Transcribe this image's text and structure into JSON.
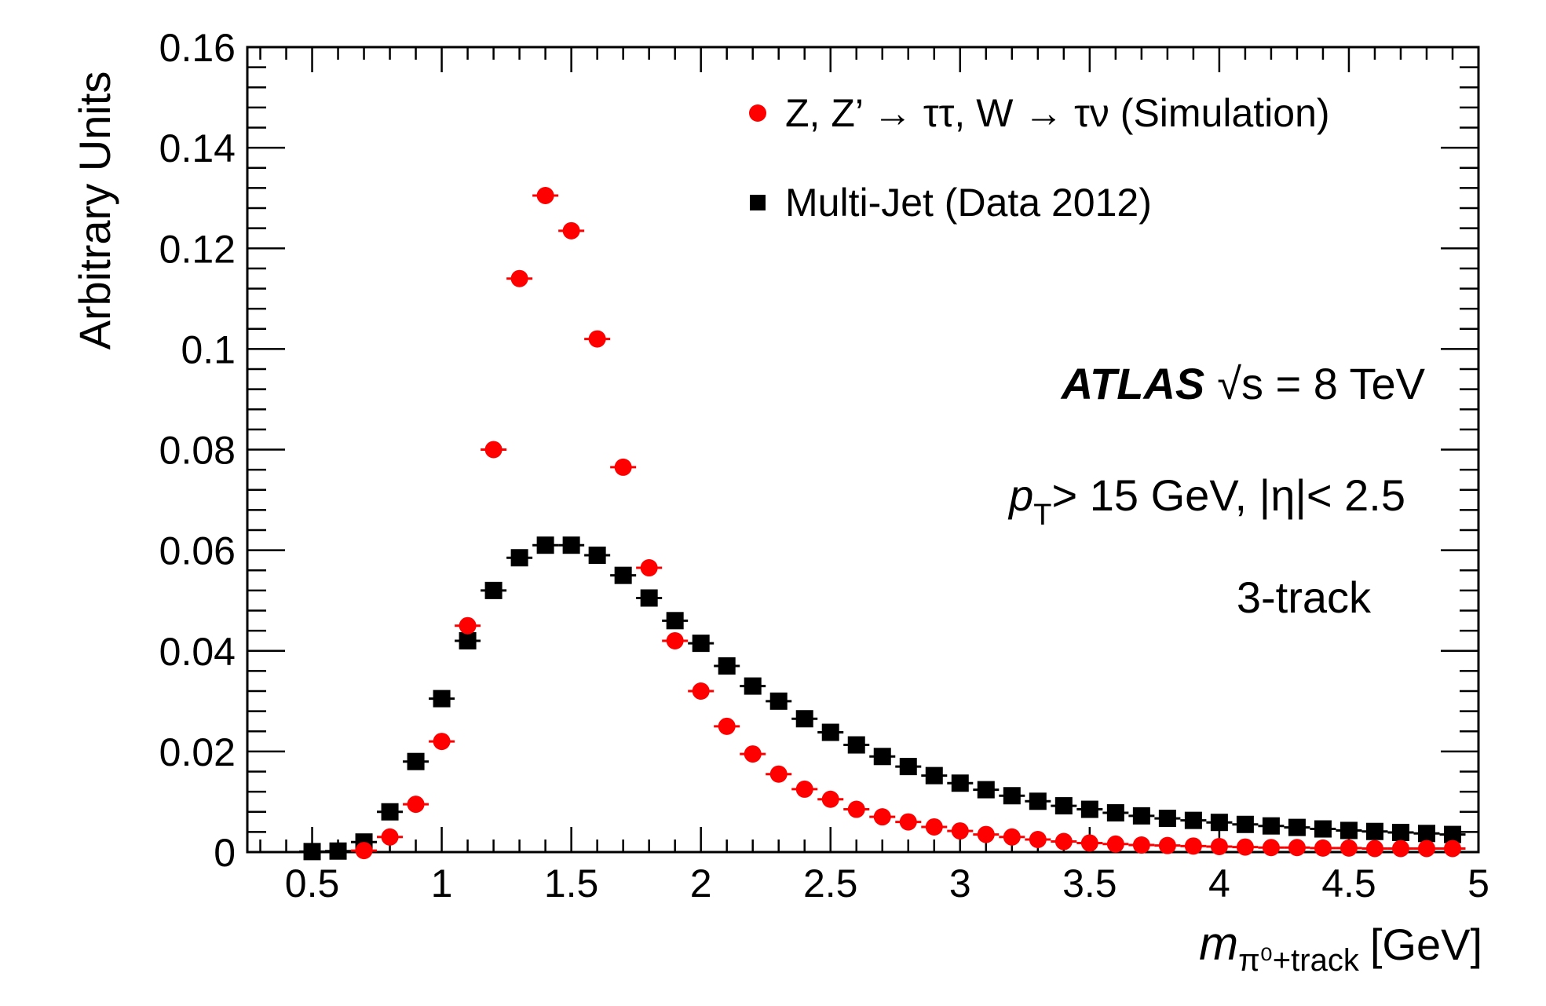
{
  "chart_data": {
    "type": "scatter",
    "ylabel": "Arbitrary Units",
    "xlabel_main": "m",
    "xlabel_sub": "π⁰+track",
    "xlabel_unit": "[GeV]",
    "xlim": [
      0.25,
      5.0
    ],
    "ylim": [
      0,
      0.16
    ],
    "x_ticks": [
      0.5,
      1,
      1.5,
      2,
      2.5,
      3,
      3.5,
      4,
      4.5,
      5
    ],
    "x_tick_labels": [
      "0.5",
      "1",
      "1.5",
      "2",
      "2.5",
      "3",
      "3.5",
      "4",
      "4.5",
      "5"
    ],
    "y_ticks": [
      0,
      0.02,
      0.04,
      0.06,
      0.08,
      0.1,
      0.12,
      0.14,
      0.16
    ],
    "y_tick_labels": [
      "0",
      "0.02",
      "0.04",
      "0.06",
      "0.08",
      "0.1",
      "0.12",
      "0.14",
      "0.16"
    ],
    "grid": false,
    "legend_position": "top-right",
    "annotations": {
      "atlas": "ATLAS",
      "energy": "√s = 8 TeV",
      "pt_symbol": "p",
      "pt_sub": "T",
      "cuts": "> 15 GeV, |η|< 2.5",
      "category": "3-track"
    },
    "series": [
      {
        "name": "Z, Z’ → ττ, W → τν (Simulation)",
        "marker": "circle",
        "color": "#ff0000",
        "x": [
          0.7,
          0.8,
          0.9,
          1.0,
          1.1,
          1.2,
          1.3,
          1.4,
          1.5,
          1.6,
          1.7,
          1.8,
          1.9,
          2.0,
          2.1,
          2.2,
          2.3,
          2.4,
          2.5,
          2.6,
          2.7,
          2.8,
          2.9,
          3.0,
          3.1,
          3.2,
          3.3,
          3.4,
          3.5,
          3.6,
          3.7,
          3.8,
          3.9,
          4.0,
          4.1,
          4.2,
          4.3,
          4.4,
          4.5,
          4.6,
          4.7,
          4.8,
          4.9
        ],
        "y": [
          0.0003,
          0.003,
          0.0095,
          0.022,
          0.045,
          0.08,
          0.114,
          0.1305,
          0.1235,
          0.102,
          0.0765,
          0.0565,
          0.042,
          0.032,
          0.025,
          0.0195,
          0.0155,
          0.0125,
          0.0105,
          0.0085,
          0.007,
          0.006,
          0.005,
          0.0042,
          0.0035,
          0.003,
          0.0025,
          0.0021,
          0.0018,
          0.0016,
          0.0014,
          0.0013,
          0.0012,
          0.0011,
          0.001,
          0.0009,
          0.0009,
          0.0008,
          0.0008,
          0.0007,
          0.0007,
          0.0007,
          0.0007
        ]
      },
      {
        "name": "Multi-Jet (Data 2012)",
        "marker": "square",
        "color": "#000000",
        "x": [
          0.5,
          0.6,
          0.7,
          0.8,
          0.9,
          1.0,
          1.1,
          1.2,
          1.3,
          1.4,
          1.5,
          1.6,
          1.7,
          1.8,
          1.9,
          2.0,
          2.1,
          2.2,
          2.3,
          2.4,
          2.5,
          2.6,
          2.7,
          2.8,
          2.9,
          3.0,
          3.1,
          3.2,
          3.3,
          3.4,
          3.5,
          3.6,
          3.7,
          3.8,
          3.9,
          4.0,
          4.1,
          4.2,
          4.3,
          4.4,
          4.5,
          4.6,
          4.7,
          4.8,
          4.9
        ],
        "y": [
          0.0001,
          0.0002,
          0.002,
          0.008,
          0.018,
          0.0305,
          0.042,
          0.052,
          0.0585,
          0.061,
          0.061,
          0.059,
          0.055,
          0.0505,
          0.046,
          0.0415,
          0.037,
          0.033,
          0.03,
          0.0265,
          0.0238,
          0.0213,
          0.019,
          0.017,
          0.0152,
          0.0137,
          0.0124,
          0.0112,
          0.0101,
          0.0092,
          0.0085,
          0.0078,
          0.0072,
          0.0067,
          0.0063,
          0.0059,
          0.0055,
          0.0052,
          0.0049,
          0.0046,
          0.0043,
          0.0041,
          0.0039,
          0.0037,
          0.0035
        ]
      }
    ]
  }
}
